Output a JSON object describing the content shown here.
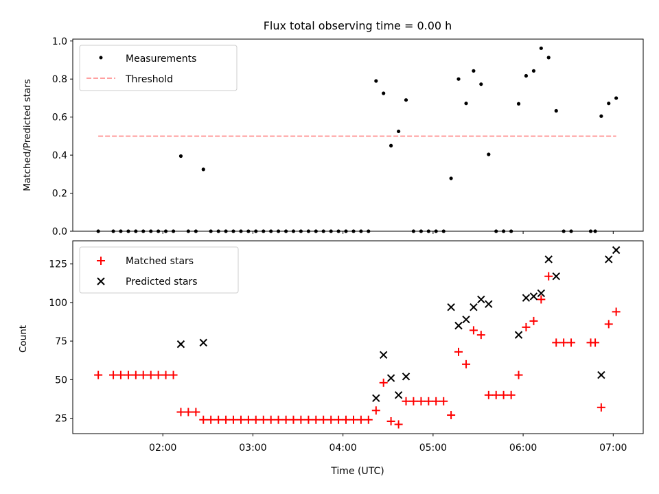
{
  "chart_data": [
    {
      "type": "scatter",
      "title": "Flux total observing time = 0.00 h",
      "xlabel": "",
      "ylabel": "Matched/Predicted stars",
      "xlim": [
        1.0,
        7.333
      ],
      "ylim": [
        0,
        1.01
      ],
      "yticks": [
        0,
        0.2,
        0.4,
        0.6,
        0.8,
        1.0
      ],
      "ytick_labels": [
        "0.0",
        "0.2",
        "0.4",
        "0.6",
        "0.8",
        "1.0"
      ],
      "legend": {
        "position": "top-left",
        "entries": [
          "Measurements",
          "Threshold"
        ]
      },
      "series": [
        {
          "name": "Measurements",
          "color": "#000000",
          "marker": "dot",
          "points": [
            [
              1.283,
              0
            ],
            [
              1.45,
              0
            ],
            [
              1.533,
              0
            ],
            [
              1.617,
              0
            ],
            [
              1.7,
              0
            ],
            [
              1.783,
              0
            ],
            [
              1.867,
              0
            ],
            [
              1.95,
              0
            ],
            [
              2.033,
              0
            ],
            [
              2.117,
              0
            ],
            [
              2.2,
              0.395
            ],
            [
              2.283,
              0
            ],
            [
              2.367,
              0
            ],
            [
              2.45,
              0.325
            ],
            [
              2.533,
              0
            ],
            [
              2.617,
              0
            ],
            [
              2.7,
              0
            ],
            [
              2.783,
              0
            ],
            [
              2.867,
              0
            ],
            [
              2.95,
              0
            ],
            [
              3.033,
              0
            ],
            [
              3.117,
              0
            ],
            [
              3.2,
              0
            ],
            [
              3.283,
              0
            ],
            [
              3.367,
              0
            ],
            [
              3.45,
              0
            ],
            [
              3.533,
              0
            ],
            [
              3.617,
              0
            ],
            [
              3.7,
              0
            ],
            [
              3.783,
              0
            ],
            [
              3.867,
              0
            ],
            [
              3.95,
              0
            ],
            [
              4.033,
              0
            ],
            [
              4.117,
              0
            ],
            [
              4.2,
              0
            ],
            [
              4.283,
              0
            ],
            [
              4.367,
              0.79
            ],
            [
              4.45,
              0.725
            ],
            [
              4.533,
              0.45
            ],
            [
              4.617,
              0.525
            ],
            [
              4.7,
              0.69
            ],
            [
              4.783,
              0
            ],
            [
              4.867,
              0
            ],
            [
              4.95,
              0
            ],
            [
              5.033,
              0
            ],
            [
              5.117,
              0
            ],
            [
              5.2,
              0.278
            ],
            [
              5.283,
              0.8
            ],
            [
              5.367,
              0.672
            ],
            [
              5.45,
              0.843
            ],
            [
              5.533,
              0.773
            ],
            [
              5.617,
              0.404
            ],
            [
              5.7,
              0
            ],
            [
              5.783,
              0
            ],
            [
              5.867,
              0
            ],
            [
              5.95,
              0.67
            ],
            [
              6.033,
              0.817
            ],
            [
              6.117,
              0.843
            ],
            [
              6.2,
              0.962
            ],
            [
              6.283,
              0.913
            ],
            [
              6.367,
              0.633
            ],
            [
              6.45,
              0
            ],
            [
              6.533,
              0
            ],
            [
              6.75,
              0
            ],
            [
              6.8,
              0
            ],
            [
              6.867,
              0.605
            ],
            [
              6.95,
              0.672
            ],
            [
              7.033,
              0.7
            ]
          ]
        },
        {
          "name": "Threshold",
          "color": "#ff8080",
          "style": "dashed-line",
          "points": [
            [
              1.283,
              0.5
            ],
            [
              7.033,
              0.5
            ]
          ]
        }
      ]
    },
    {
      "type": "scatter",
      "title": "",
      "xlabel": "Time (UTC)",
      "ylabel": "Count",
      "xlim": [
        1.0,
        7.333
      ],
      "ylim": [
        15,
        140
      ],
      "yticks": [
        25,
        50,
        75,
        100,
        125
      ],
      "ytick_labels": [
        "25",
        "50",
        "75",
        "100",
        "125"
      ],
      "xticks": [
        2,
        3,
        4,
        5,
        6,
        7
      ],
      "xtick_labels": [
        "02:00",
        "03:00",
        "04:00",
        "05:00",
        "06:00",
        "07:00"
      ],
      "legend": {
        "position": "top-left",
        "entries": [
          "Matched stars",
          "Predicted stars"
        ]
      },
      "series": [
        {
          "name": "Matched stars",
          "color": "#ff0000",
          "marker": "plus",
          "points": [
            [
              1.283,
              53
            ],
            [
              1.45,
              53
            ],
            [
              1.533,
              53
            ],
            [
              1.617,
              53
            ],
            [
              1.7,
              53
            ],
            [
              1.783,
              53
            ],
            [
              1.867,
              53
            ],
            [
              1.95,
              53
            ],
            [
              2.033,
              53
            ],
            [
              2.117,
              53
            ],
            [
              2.2,
              29
            ],
            [
              2.283,
              29
            ],
            [
              2.367,
              29
            ],
            [
              2.45,
              24
            ],
            [
              2.533,
              24
            ],
            [
              2.617,
              24
            ],
            [
              2.7,
              24
            ],
            [
              2.783,
              24
            ],
            [
              2.867,
              24
            ],
            [
              2.95,
              24
            ],
            [
              3.033,
              24
            ],
            [
              3.117,
              24
            ],
            [
              3.2,
              24
            ],
            [
              3.283,
              24
            ],
            [
              3.367,
              24
            ],
            [
              3.45,
              24
            ],
            [
              3.533,
              24
            ],
            [
              3.617,
              24
            ],
            [
              3.7,
              24
            ],
            [
              3.783,
              24
            ],
            [
              3.867,
              24
            ],
            [
              3.95,
              24
            ],
            [
              4.033,
              24
            ],
            [
              4.117,
              24
            ],
            [
              4.2,
              24
            ],
            [
              4.283,
              24
            ],
            [
              4.367,
              30
            ],
            [
              4.45,
              48
            ],
            [
              4.533,
              23
            ],
            [
              4.617,
              21
            ],
            [
              4.7,
              36
            ],
            [
              4.783,
              36
            ],
            [
              4.867,
              36
            ],
            [
              4.95,
              36
            ],
            [
              5.033,
              36
            ],
            [
              5.117,
              36
            ],
            [
              5.2,
              27
            ],
            [
              5.283,
              68
            ],
            [
              5.367,
              60
            ],
            [
              5.45,
              82
            ],
            [
              5.533,
              79
            ],
            [
              5.617,
              40
            ],
            [
              5.7,
              40
            ],
            [
              5.783,
              40
            ],
            [
              5.867,
              40
            ],
            [
              5.95,
              53
            ],
            [
              6.033,
              84
            ],
            [
              6.117,
              88
            ],
            [
              6.2,
              102
            ],
            [
              6.283,
              117
            ],
            [
              6.367,
              74
            ],
            [
              6.45,
              74
            ],
            [
              6.533,
              74
            ],
            [
              6.75,
              74
            ],
            [
              6.8,
              74
            ],
            [
              6.867,
              32
            ],
            [
              6.95,
              86
            ],
            [
              7.033,
              94
            ]
          ]
        },
        {
          "name": "Predicted stars",
          "color": "#000000",
          "marker": "x",
          "points": [
            [
              2.2,
              73
            ],
            [
              2.45,
              74
            ],
            [
              4.367,
              38
            ],
            [
              4.45,
              66
            ],
            [
              4.533,
              51
            ],
            [
              4.617,
              40
            ],
            [
              4.7,
              52
            ],
            [
              5.2,
              97
            ],
            [
              5.283,
              85
            ],
            [
              5.367,
              89
            ],
            [
              5.45,
              97
            ],
            [
              5.533,
              102
            ],
            [
              5.617,
              99
            ],
            [
              5.95,
              79
            ],
            [
              6.033,
              103
            ],
            [
              6.117,
              104
            ],
            [
              6.2,
              106
            ],
            [
              6.283,
              128
            ],
            [
              6.367,
              117
            ],
            [
              6.867,
              53
            ],
            [
              6.95,
              128
            ],
            [
              7.033,
              134
            ]
          ]
        }
      ]
    }
  ]
}
